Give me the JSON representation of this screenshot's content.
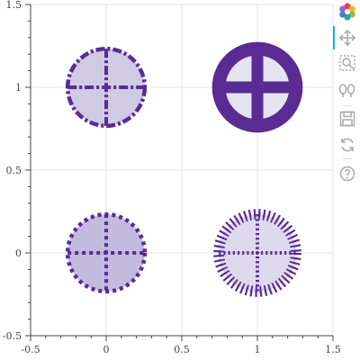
{
  "chart_data": {
    "type": "scatter",
    "title": "",
    "xlabel": "",
    "ylabel": "",
    "xlim": [
      -0.5,
      1.5
    ],
    "ylim": [
      -0.5,
      1.5
    ],
    "grid": true,
    "x_ticks": [
      "-0.5",
      "0",
      "0.5",
      "1",
      "1.5"
    ],
    "y_ticks": [
      "-0.5",
      "0",
      "0.5",
      "1",
      "1.5"
    ],
    "x_tick_values": [
      -0.5,
      0,
      0.5,
      1,
      1.5
    ],
    "y_tick_values": [
      -0.5,
      0,
      0.5,
      1,
      1.5
    ],
    "points": [
      {
        "x": 0,
        "y": 1,
        "radius": 0.3,
        "marker": "circle_cross",
        "line_dash": "dashdot",
        "fill_alpha": 0.35
      },
      {
        "x": 1,
        "y": 1,
        "radius": 0.3,
        "marker": "circle_cross",
        "line_dash": "solid",
        "fill_alpha": 0.18
      },
      {
        "x": 0,
        "y": 0,
        "radius": 0.3,
        "marker": "circle_cross",
        "line_dash": "dotted",
        "fill_alpha": 0.45
      },
      {
        "x": 1,
        "y": 0,
        "radius": 0.3,
        "marker": "circle_cross",
        "line_dash": "dense-dashed",
        "fill_alpha": 0.25
      }
    ],
    "colors": {
      "line": "#5a2b93",
      "fill": "#7b68b5",
      "grid": "#e5e5e5",
      "axis": "#444444"
    }
  },
  "toolbar": {
    "tools": [
      {
        "name": "bokeh-logo-icon",
        "interactable": false
      },
      {
        "name": "pan-tool-icon",
        "interactable": true,
        "active": true
      },
      {
        "name": "box-zoom-tool-icon",
        "interactable": true
      },
      {
        "name": "wheel-zoom-tool-icon",
        "interactable": true
      },
      {
        "name": "save-tool-icon",
        "interactable": true
      },
      {
        "name": "reset-tool-icon",
        "interactable": true
      },
      {
        "name": "help-tool-icon",
        "interactable": true
      }
    ]
  }
}
